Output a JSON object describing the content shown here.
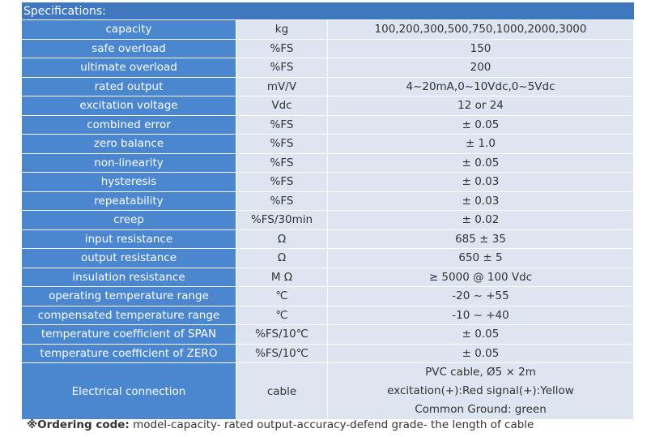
{
  "header": {
    "title": "Specifications:"
  },
  "table": {
    "rows": [
      [
        "capacity",
        "kg",
        "100,200,300,500,750,1000,2000,3000"
      ],
      [
        "safe overload",
        "%FS",
        "150"
      ],
      [
        "ultimate overload",
        "%FS",
        "200"
      ],
      [
        "rated output",
        "mV/V",
        "4~20mA,0~10Vdc,0~5Vdc"
      ],
      [
        "excitation voltage",
        "Vdc",
        "12 or 24"
      ],
      [
        "combined error",
        "%FS",
        "± 0.05"
      ],
      [
        "zero balance",
        "%FS",
        "± 1.0"
      ],
      [
        "non-linearity",
        "%FS",
        "± 0.05"
      ],
      [
        "hysteresis",
        "%FS",
        "± 0.03"
      ],
      [
        "repeatability",
        "%FS",
        "± 0.03"
      ],
      [
        "creep",
        "%FS/30min",
        "± 0.02"
      ],
      [
        "input resistance",
        "Ω",
        "685 ± 35"
      ],
      [
        "output resistance",
        "Ω",
        "650 ± 5"
      ],
      [
        "insulation resistance",
        "M Ω",
        "≥ 5000 @ 100 Vdc"
      ],
      [
        "operating temperature range",
        "℃",
        "-20 ~ +55"
      ],
      [
        "compensated temperature range",
        "℃",
        "-10 ~ +40"
      ],
      [
        "temperature coefficient of SPAN",
        "%FS/10℃",
        "± 0.05"
      ],
      [
        "temperature coefficient of ZERO",
        "%FS/10℃",
        "± 0.05"
      ],
      [
        "Electrical connection",
        "cable",
        [
          "PVC cable, Ø5 × 2m",
          "excitation(+):Red signal(+):Yellow",
          "Common Ground: green"
        ]
      ]
    ]
  },
  "footer": {
    "label": "※Ordering code:",
    "text": " model-capacity- rated output-accuracy-defend grade- the length of cable"
  }
}
